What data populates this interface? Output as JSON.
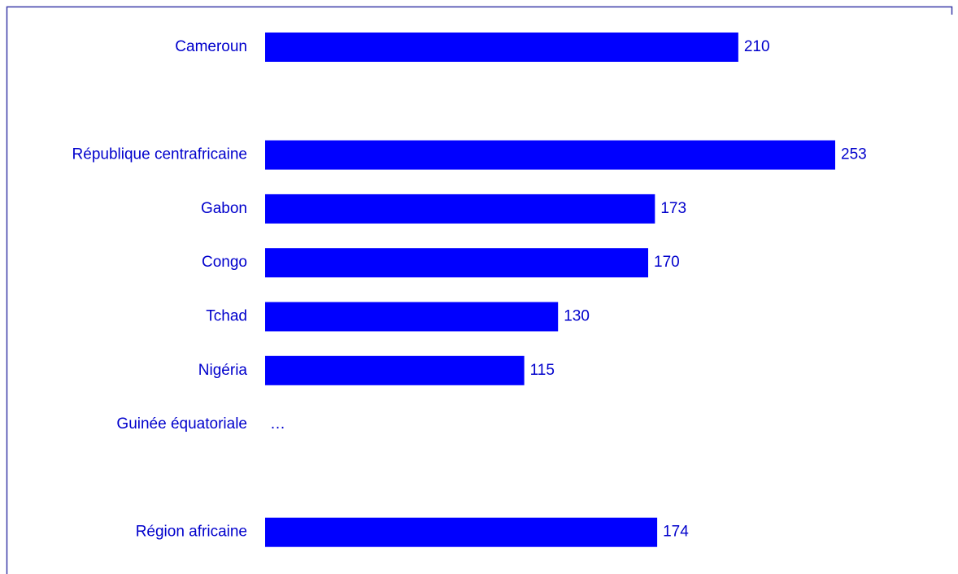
{
  "chart_data": {
    "type": "bar",
    "orientation": "horizontal",
    "categories": [
      "Cameroun",
      null,
      "République centrafricaine",
      "Gabon",
      "Congo",
      "Tchad",
      "Nigéria",
      "Guinée équatoriale",
      null,
      "Région africaine"
    ],
    "values": [
      210,
      null,
      253,
      173,
      170,
      130,
      115,
      null,
      null,
      174
    ],
    "value_labels": [
      null,
      null,
      null,
      null,
      null,
      null,
      null,
      "…",
      null,
      null
    ],
    "color": "#0000ff"
  }
}
